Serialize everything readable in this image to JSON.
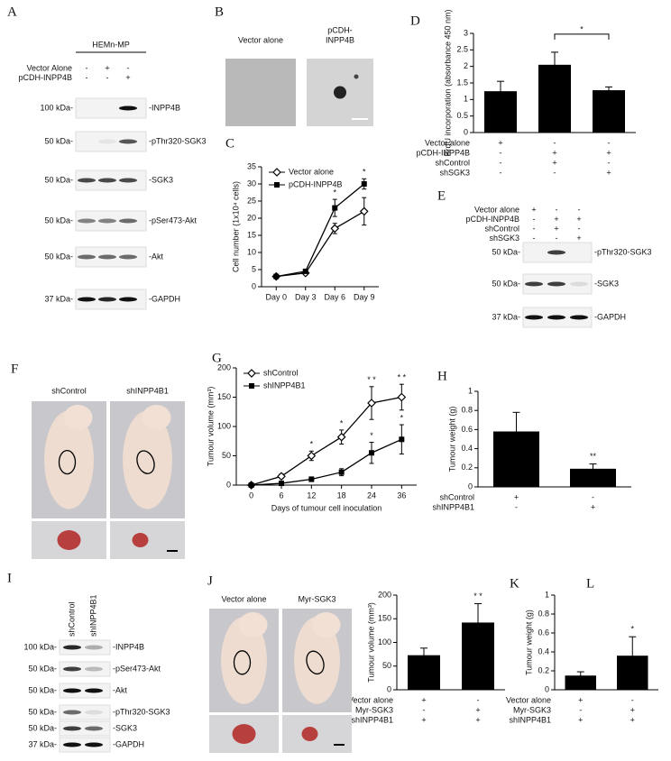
{
  "chart_data": [
    {
      "panel": "C",
      "type": "line",
      "ylabel": "Cell number (1x10⁴ cells)",
      "categories": [
        "Day 0",
        "Day 3",
        "Day 6",
        "Day 9"
      ],
      "series": [
        {
          "name": "Vector alone",
          "color": "#000000",
          "marker": "diamond-open",
          "values": [
            3,
            4,
            17,
            22
          ],
          "errors": [
            0.3,
            0.5,
            1.5,
            4
          ]
        },
        {
          "name": "pCDH-INPP4B",
          "color": "#000000",
          "marker": "square",
          "values": [
            3,
            4.5,
            23,
            30
          ],
          "errors": [
            0.3,
            0.5,
            2.5,
            1.5
          ]
        }
      ],
      "ylim": [
        0,
        35
      ],
      "yticks": [
        0,
        5,
        10,
        15,
        20,
        25,
        30,
        35
      ],
      "legend": "upper left",
      "annotations": [
        "*",
        "*"
      ]
    },
    {
      "panel": "D",
      "type": "bar",
      "ylabel": "BrdU incorporation (absorbance 450 nm)",
      "color": "#000000",
      "values": [
        1.25,
        2.05,
        1.28
      ],
      "errors": [
        0.3,
        0.38,
        0.1
      ],
      "ylim": [
        0,
        3
      ],
      "yticks": [
        0,
        0.5,
        1,
        1.5,
        2,
        2.5,
        3
      ],
      "conditions": [
        {
          "name": "Vector alone",
          "marks": [
            "+",
            "-",
            "-"
          ]
        },
        {
          "name": "pCDH-INPP4B",
          "marks": [
            "-",
            "+",
            "+"
          ]
        },
        {
          "name": "shControl",
          "marks": [
            "-",
            "+",
            "-"
          ]
        },
        {
          "name": "shSGK3",
          "marks": [
            "-",
            "-",
            "+"
          ]
        }
      ],
      "annotations": [
        "*"
      ]
    },
    {
      "panel": "G",
      "type": "line",
      "ylabel": "Tumour volume (mm³)",
      "xlabel": "Days of tumour cell inoculation",
      "categories": [
        "0",
        "6",
        "12",
        "18",
        "24",
        "36"
      ],
      "series": [
        {
          "name": "shControl",
          "color": "#000000",
          "marker": "diamond-open",
          "values": [
            0,
            15,
            50,
            82,
            140,
            150
          ],
          "errors": [
            2,
            4,
            8,
            12,
            28,
            22
          ]
        },
        {
          "name": "shINPP4B1",
          "color": "#000000",
          "marker": "square",
          "values": [
            0,
            3,
            10,
            22,
            55,
            78
          ],
          "errors": [
            1,
            2,
            4,
            6,
            18,
            25
          ]
        }
      ],
      "ylim": [
        0,
        200
      ],
      "yticks": [
        0,
        50,
        100,
        150,
        200
      ],
      "legend": "upper left",
      "annotations": [
        "*",
        "*",
        "* *",
        "* *",
        "*",
        "*"
      ]
    },
    {
      "panel": "H",
      "type": "bar",
      "ylabel": "Tumour weight (g)",
      "color": "#000000",
      "values": [
        0.58,
        0.19
      ],
      "errors": [
        0.2,
        0.05
      ],
      "ylim": [
        0,
        1
      ],
      "yticks": [
        0,
        0.2,
        0.4,
        0.6,
        0.8,
        1
      ],
      "conditions": [
        {
          "name": "shControl",
          "marks": [
            "+",
            "-"
          ]
        },
        {
          "name": "shINPP4B1",
          "marks": [
            "-",
            "+"
          ]
        }
      ],
      "annotations": [
        "**"
      ]
    },
    {
      "panel": "K",
      "type": "bar",
      "ylabel": "Tumour volume (mm³)",
      "color": "#000000",
      "values": [
        73,
        142
      ],
      "errors": [
        15,
        40
      ],
      "ylim": [
        0,
        200
      ],
      "yticks": [
        0,
        50,
        100,
        150,
        200
      ],
      "conditions": [
        {
          "name": "Vector alone",
          "marks": [
            "+",
            "-"
          ]
        },
        {
          "name": "Myr-SGK3",
          "marks": [
            "-",
            "+"
          ]
        },
        {
          "name": "shINPP4B1",
          "marks": [
            "+",
            "+"
          ]
        }
      ],
      "annotations": [
        "* *"
      ]
    },
    {
      "panel": "L",
      "type": "bar",
      "ylabel": "Tumour weight (g)",
      "color": "#000000",
      "values": [
        0.15,
        0.36
      ],
      "errors": [
        0.04,
        0.2
      ],
      "ylim": [
        0,
        1
      ],
      "yticks": [
        0,
        0.2,
        0.4,
        0.6,
        0.8,
        1
      ],
      "conditions": [
        {
          "name": "Vector alone",
          "marks": [
            "+",
            "-"
          ]
        },
        {
          "name": "Myr-SGK3",
          "marks": [
            "-",
            "+"
          ]
        },
        {
          "name": "shINPP4B1",
          "marks": [
            "+",
            "+"
          ]
        }
      ],
      "annotations": [
        "*"
      ]
    }
  ],
  "blots": [
    {
      "panel": "A",
      "header": "HEMn-MP",
      "conditions": [
        {
          "name": "Vector Alone",
          "marks": [
            "-",
            "+",
            "-"
          ]
        },
        {
          "name": "pCDH-INPP4B",
          "marks": [
            "-",
            "-",
            "+"
          ]
        }
      ],
      "rows": [
        {
          "marker": "100 kDa-",
          "name": "-INPP4B"
        },
        {
          "marker": "50 kDa-",
          "name": "-pThr320-SGK3"
        },
        {
          "marker": "50 kDa-",
          "name": "-SGK3"
        },
        {
          "marker": "50 kDa-",
          "name": "-pSer473-Akt"
        },
        {
          "marker": "50 kDa-",
          "name": "-Akt"
        },
        {
          "marker": "37 kDa-",
          "name": "-GAPDH"
        }
      ]
    },
    {
      "panel": "E",
      "conditions": [
        {
          "name": "Vector alone",
          "marks": [
            "+",
            "-",
            "-"
          ]
        },
        {
          "name": "pCDH-INPP4B",
          "marks": [
            "-",
            "+",
            "+"
          ]
        },
        {
          "name": "shControl",
          "marks": [
            "-",
            "+",
            "-"
          ]
        },
        {
          "name": "shSGK3",
          "marks": [
            "-",
            "-",
            "+"
          ]
        }
      ],
      "rows": [
        {
          "marker": "50 kDa-",
          "name": "-pThr320-SGK3"
        },
        {
          "marker": "50 kDa-",
          "name": "-SGK3"
        },
        {
          "marker": "37 kDa-",
          "name": "-GAPDH"
        }
      ]
    },
    {
      "panel": "I",
      "lanes": [
        "shControl",
        "shINPP4B1"
      ],
      "rows": [
        {
          "marker": "100 kDa-",
          "name": "-INPP4B"
        },
        {
          "marker": "50 kDa-",
          "name": "-pSer473-Akt"
        },
        {
          "marker": "50 kDa-",
          "name": "-Akt"
        },
        {
          "marker": "50 kDa-",
          "name": "-pThr320-SGK3"
        },
        {
          "marker": "50 kDa-",
          "name": "-SGK3"
        },
        {
          "marker": "37 kDa-",
          "name": "-GAPDH"
        }
      ]
    }
  ],
  "photos": [
    {
      "panel": "B",
      "labels": [
        [
          "Vector alone"
        ],
        [
          "pCDH-",
          "INPP4B"
        ]
      ]
    },
    {
      "panel": "F",
      "labels": [
        [
          "shControl"
        ],
        [
          "shINPP4B1"
        ]
      ]
    },
    {
      "panel": "J",
      "labels": [
        [
          "Vector alone"
        ],
        [
          "Myr-SGK3"
        ]
      ]
    }
  ]
}
